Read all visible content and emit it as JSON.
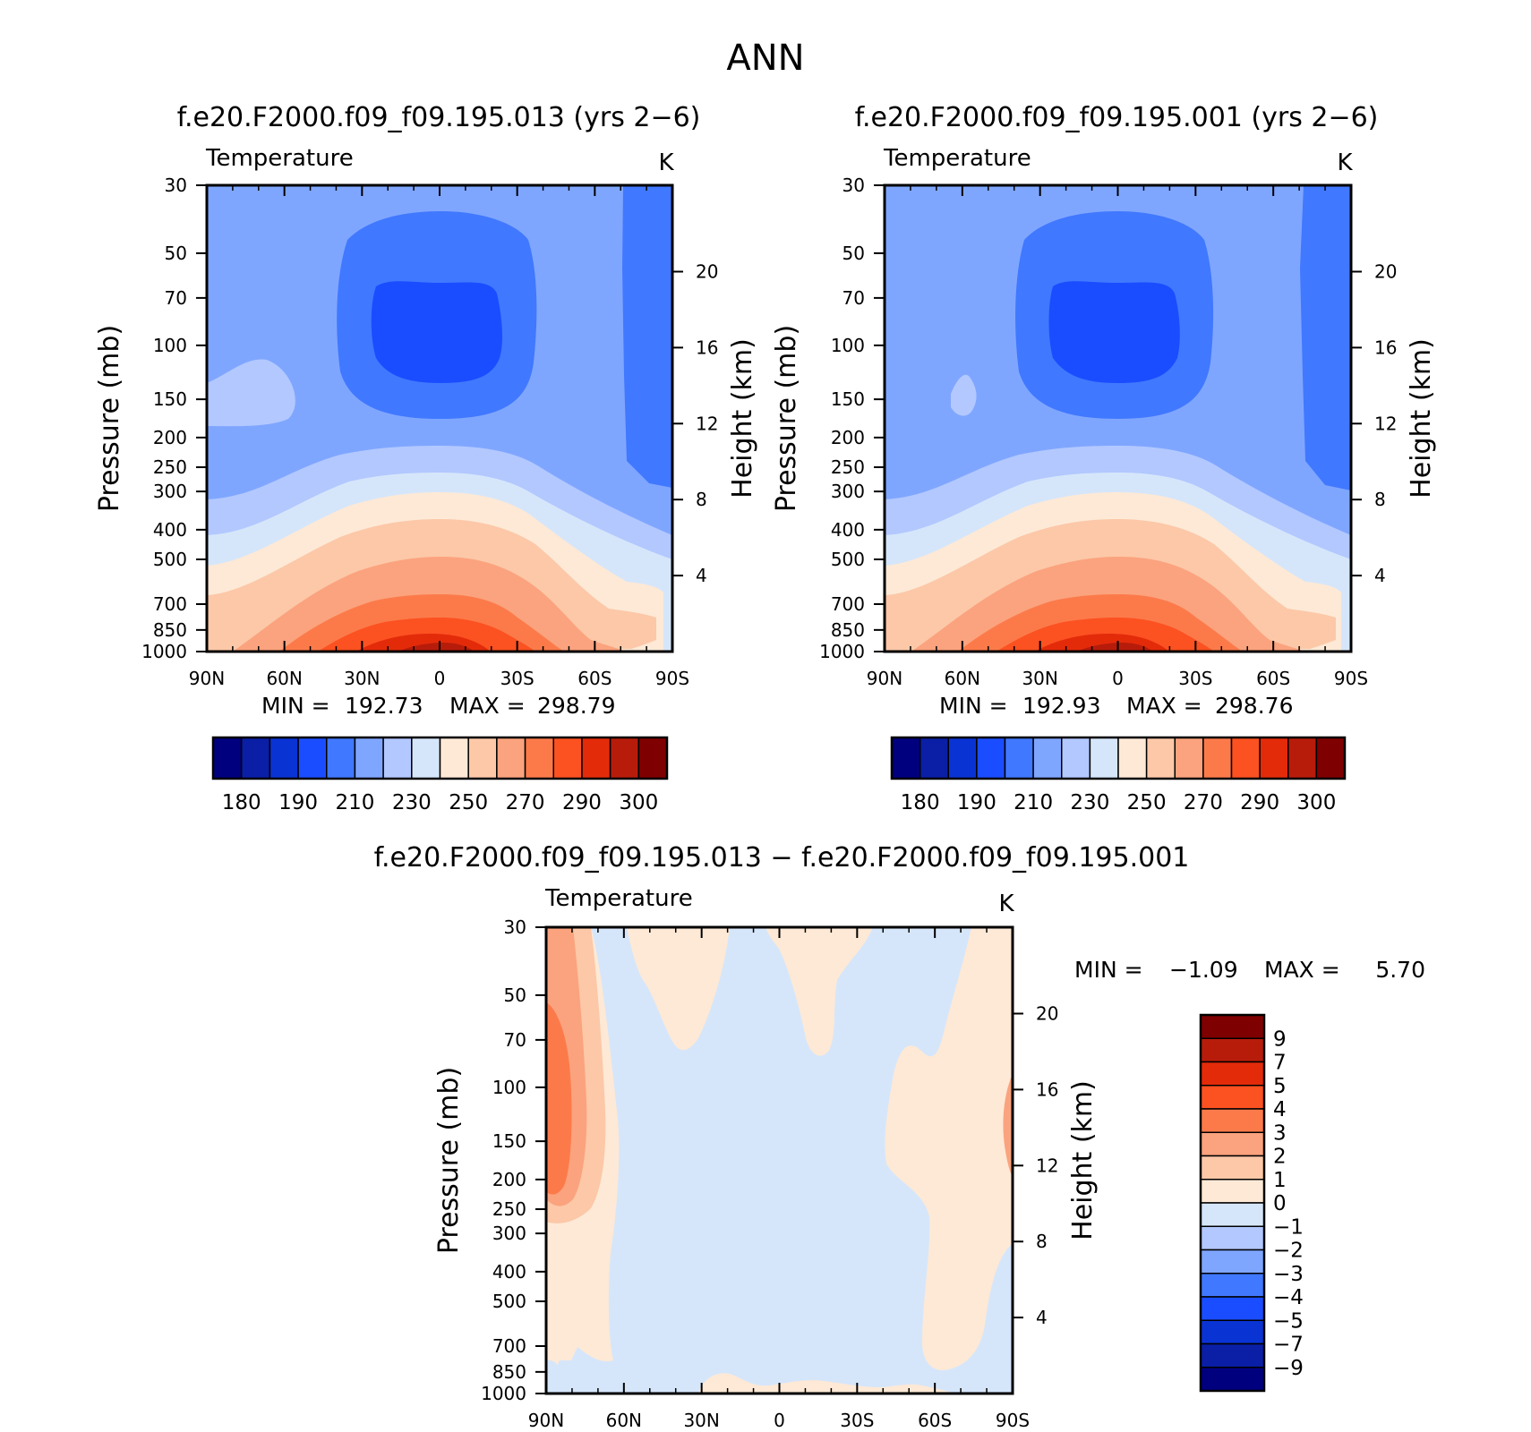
{
  "figure": {
    "title": "ANN"
  },
  "chart_data": [
    {
      "type": "heatmap",
      "title": "f.e20.F2000.f09_f09.195.013 (yrs 2−6)",
      "variable_label": "Temperature",
      "units_label": "K",
      "ylabel": "Pressure (mb)",
      "ylabel_right": "Height (km)",
      "x_ticks": [
        "90N",
        "60N",
        "30N",
        "0",
        "30S",
        "60S",
        "90S"
      ],
      "y_ticks": [
        30,
        50,
        70,
        100,
        150,
        200,
        250,
        300,
        400,
        500,
        700,
        850,
        1000
      ],
      "y_scale": "log",
      "y_right_ticks": [
        20,
        16,
        12,
        8,
        4
      ],
      "stats": {
        "min_label": "MIN =",
        "min": "192.73",
        "max_label": "MAX =",
        "max": "298.79"
      },
      "colorbar": {
        "orientation": "horizontal",
        "levels": [
          180,
          190,
          210,
          230,
          250,
          270,
          290,
          300
        ],
        "colors": [
          "#00007f",
          "#0a1fa6",
          "#0a33d4",
          "#1a4dff",
          "#4078ff",
          "#7fa6ff",
          "#b2c8ff",
          "#d6e6fa",
          "#fde9d6",
          "#fcc8a8",
          "#fba37e",
          "#fc7a4a",
          "#fc5121",
          "#e32b0a",
          "#b71c0a",
          "#7f0000"
        ]
      }
    },
    {
      "type": "heatmap",
      "title": "f.e20.F2000.f09_f09.195.001 (yrs 2−6)",
      "variable_label": "Temperature",
      "units_label": "K",
      "ylabel": "Pressure (mb)",
      "ylabel_right": "Height (km)",
      "x_ticks": [
        "90N",
        "60N",
        "30N",
        "0",
        "30S",
        "60S",
        "90S"
      ],
      "y_ticks": [
        30,
        50,
        70,
        100,
        150,
        200,
        250,
        300,
        400,
        500,
        700,
        850,
        1000
      ],
      "y_scale": "log",
      "y_right_ticks": [
        20,
        16,
        12,
        8,
        4
      ],
      "stats": {
        "min_label": "MIN =",
        "min": "192.93",
        "max_label": "MAX =",
        "max": "298.76"
      },
      "colorbar": {
        "orientation": "horizontal",
        "levels": [
          180,
          190,
          210,
          230,
          250,
          270,
          290,
          300
        ],
        "colors": [
          "#00007f",
          "#0a1fa6",
          "#0a33d4",
          "#1a4dff",
          "#4078ff",
          "#7fa6ff",
          "#b2c8ff",
          "#d6e6fa",
          "#fde9d6",
          "#fcc8a8",
          "#fba37e",
          "#fc7a4a",
          "#fc5121",
          "#e32b0a",
          "#b71c0a",
          "#7f0000"
        ]
      }
    },
    {
      "type": "heatmap",
      "title": "f.e20.F2000.f09_f09.195.013 − f.e20.F2000.f09_f09.195.001",
      "variable_label": "Temperature",
      "units_label": "K",
      "ylabel": "Pressure (mb)",
      "ylabel_right": "Height (km)",
      "x_ticks": [
        "90N",
        "60N",
        "30N",
        "0",
        "30S",
        "60S",
        "90S"
      ],
      "y_ticks": [
        30,
        50,
        70,
        100,
        150,
        200,
        250,
        300,
        400,
        500,
        700,
        850,
        1000
      ],
      "y_scale": "log",
      "y_right_ticks": [
        20,
        16,
        12,
        8,
        4
      ],
      "stats": {
        "min_label": "MIN =",
        "min": "−1.09",
        "max_label": "MAX =",
        "max": "5.70"
      },
      "colorbar": {
        "orientation": "vertical",
        "levels": [
          9,
          7,
          5,
          4,
          3,
          2,
          1,
          0,
          "−1",
          "−2",
          "−3",
          "−4",
          "−5",
          "−7",
          "−9"
        ],
        "colors": [
          "#7f0000",
          "#b71c0a",
          "#e32b0a",
          "#fc5121",
          "#fc7a4a",
          "#fba37e",
          "#fcc8a8",
          "#fde9d6",
          "#d6e6fa",
          "#b2c8ff",
          "#7fa6ff",
          "#4078ff",
          "#1a4dff",
          "#0a33d4",
          "#0a1fa6",
          "#00007f"
        ]
      }
    }
  ]
}
